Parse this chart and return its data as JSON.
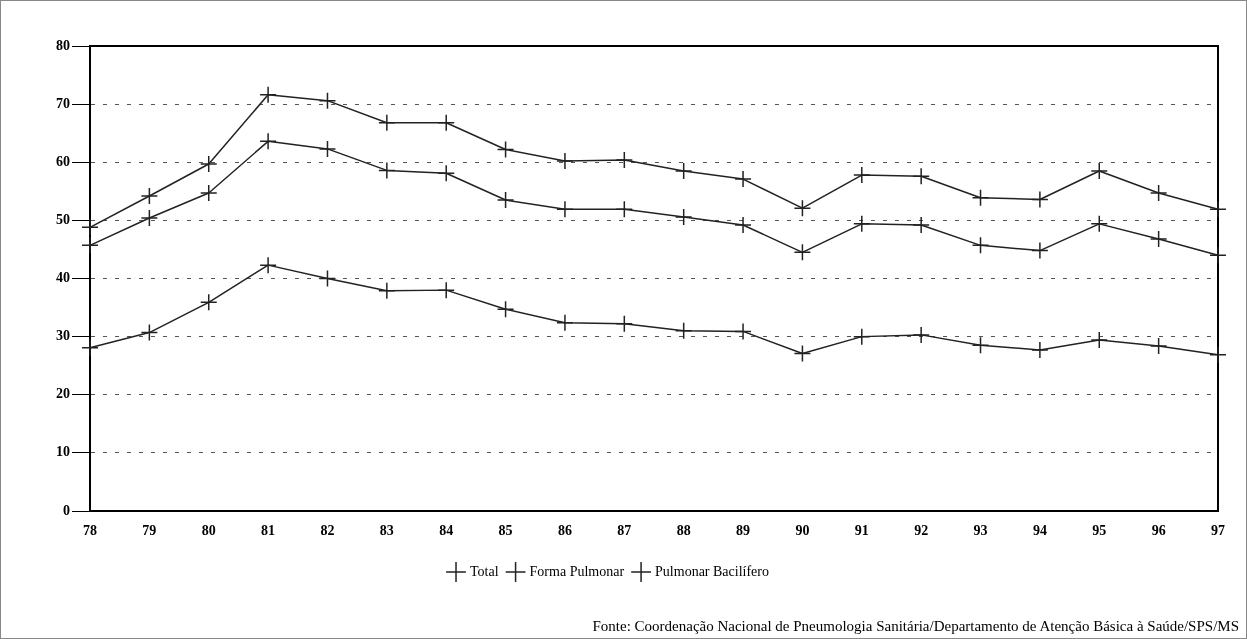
{
  "chart_data": {
    "type": "line",
    "categories": [
      "78",
      "79",
      "80",
      "81",
      "82",
      "83",
      "84",
      "85",
      "86",
      "87",
      "88",
      "89",
      "90",
      "91",
      "92",
      "93",
      "94",
      "95",
      "96",
      "97"
    ],
    "series": [
      {
        "name": "Total",
        "color": "#222222",
        "values": [
          48.8,
          54.2,
          59.7,
          71.6,
          70.6,
          66.8,
          66.8,
          62.2,
          60.2,
          60.4,
          58.5,
          57.1,
          52.1,
          57.8,
          57.6,
          53.9,
          53.6,
          58.5,
          54.7,
          51.9
        ]
      },
      {
        "name": "Forma Pulmonar",
        "color": "#222222",
        "values": [
          45.7,
          50.4,
          54.7,
          63.6,
          62.3,
          58.6,
          58.1,
          53.5,
          51.9,
          51.9,
          50.6,
          49.2,
          44.5,
          49.4,
          49.2,
          45.7,
          44.8,
          49.4,
          46.8,
          44.0
        ]
      },
      {
        "name": "Pulmonar Bacilífero",
        "color": "#222222",
        "values": [
          28.1,
          30.7,
          35.9,
          42.3,
          40.0,
          37.9,
          38.0,
          34.7,
          32.4,
          32.2,
          31.0,
          30.9,
          27.1,
          30.0,
          30.3,
          28.5,
          27.7,
          29.4,
          28.4,
          26.9
        ]
      }
    ],
    "ylim": [
      0,
      80
    ],
    "yticks": [
      0,
      10,
      20,
      30,
      40,
      50,
      60,
      70,
      80
    ],
    "grid": "y",
    "legend": "bottom",
    "marker": "cross",
    "line_style": "solid",
    "annotations": [
      "Fonte: Coordenação Nacional de Pneumologia Sanitária/Departamento de Atenção Básica à Saúde/SPS/MS"
    ]
  }
}
